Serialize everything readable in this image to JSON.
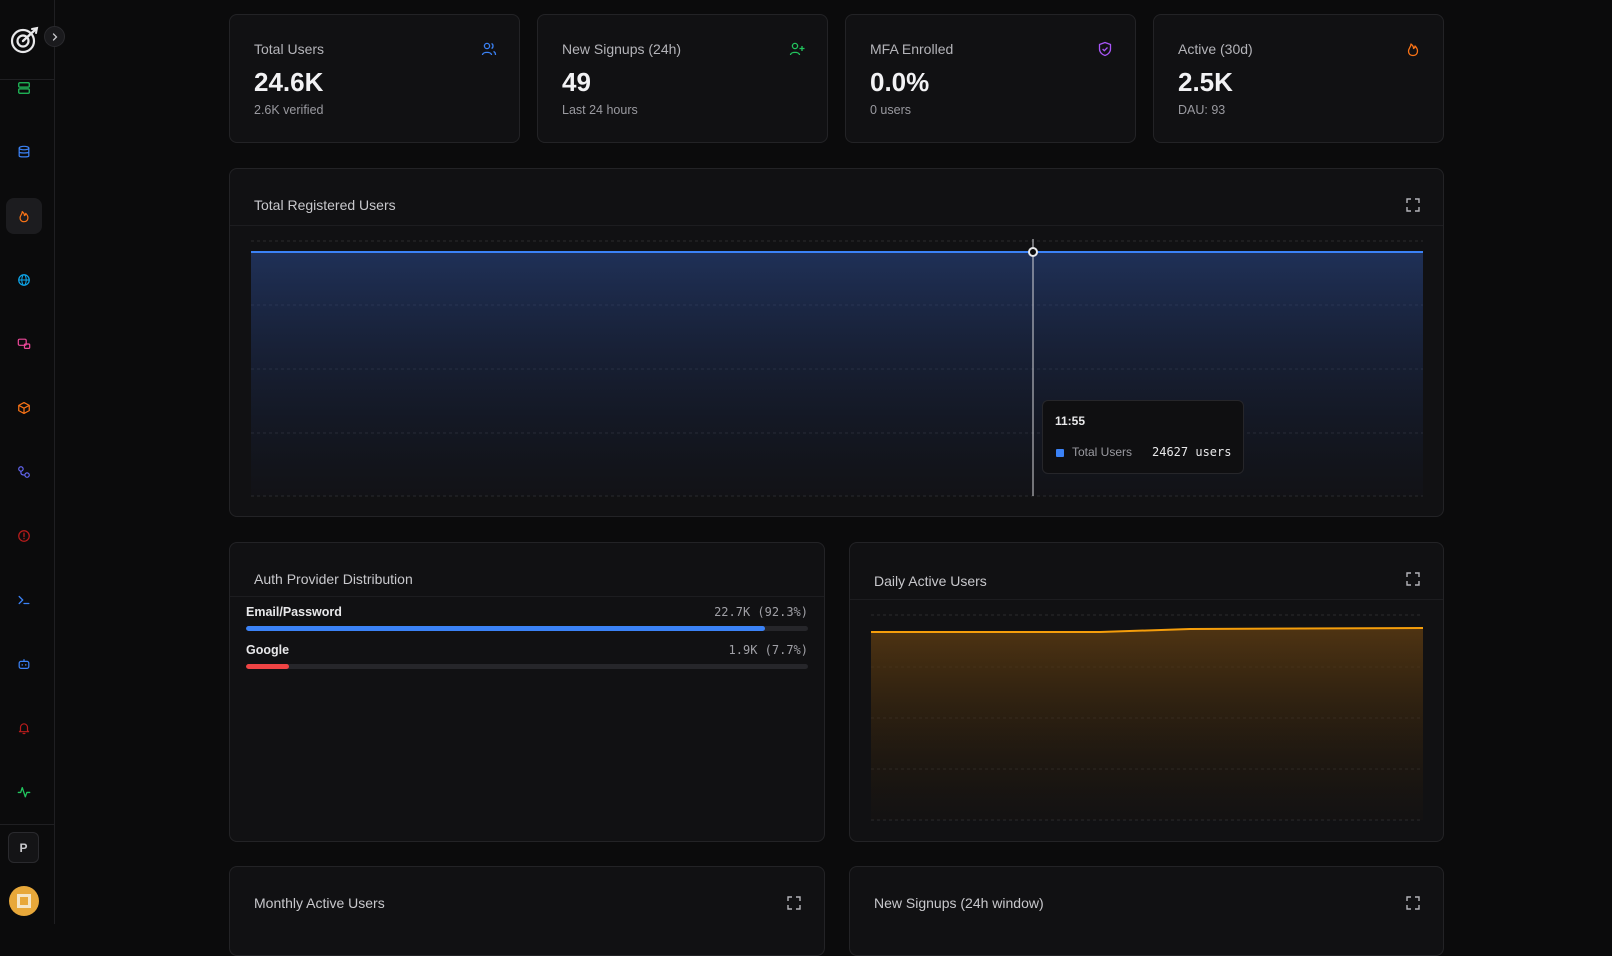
{
  "stats": [
    {
      "title": "Total Users",
      "value": "24.6K",
      "sub": "2.6K verified",
      "icon": "users-icon",
      "color": "#3b82f6"
    },
    {
      "title": "New Signups (24h)",
      "value": "49",
      "sub": "Last 24 hours",
      "icon": "user-plus-icon",
      "color": "#22c55e"
    },
    {
      "title": "MFA Enrolled",
      "value": "0.0%",
      "sub": "0 users",
      "icon": "shield-check-icon",
      "color": "#a855f7"
    },
    {
      "title": "Active (30d)",
      "value": "2.5K",
      "sub": "DAU: 93",
      "icon": "flame-icon",
      "color": "#f97316"
    }
  ],
  "total_registered": {
    "title": "Total Registered Users",
    "tooltip": {
      "time": "11:55",
      "series": "Total Users",
      "value": "24627 users"
    }
  },
  "auth_providers": {
    "title": "Auth Provider Distribution",
    "items": [
      {
        "name": "Email/Password",
        "stat": "22.7K (92.3%)",
        "pct": 92.3,
        "color": "#3b82f6"
      },
      {
        "name": "Google",
        "stat": "1.9K (7.7%)",
        "pct": 7.7,
        "color": "#ef4444"
      }
    ]
  },
  "daily_active": {
    "title": "Daily Active Users"
  },
  "monthly_active": {
    "title": "Monthly Active Users"
  },
  "new_signups_window": {
    "title": "New Signups (24h window)"
  },
  "sidebar": {
    "project_initial": "P",
    "icons": [
      {
        "name": "server-icon",
        "color": "#22c55e"
      },
      {
        "name": "database-icon",
        "color": "#3b82f6"
      },
      {
        "name": "flame-icon",
        "color": "#f97316",
        "active": true
      },
      {
        "name": "globe-icon",
        "color": "#0ea5e9"
      },
      {
        "name": "messages-icon",
        "color": "#ec4899"
      },
      {
        "name": "package-icon",
        "color": "#f97316"
      },
      {
        "name": "workflow-icon",
        "color": "#6366f1"
      },
      {
        "name": "alert-circle-icon",
        "color": "#dc2626"
      },
      {
        "name": "terminal-icon",
        "color": "#3b82f6"
      },
      {
        "name": "bot-icon",
        "color": "#3b82f6"
      },
      {
        "name": "bell-icon",
        "color": "#dc2626"
      },
      {
        "name": "activity-icon",
        "color": "#22c55e"
      }
    ]
  }
}
